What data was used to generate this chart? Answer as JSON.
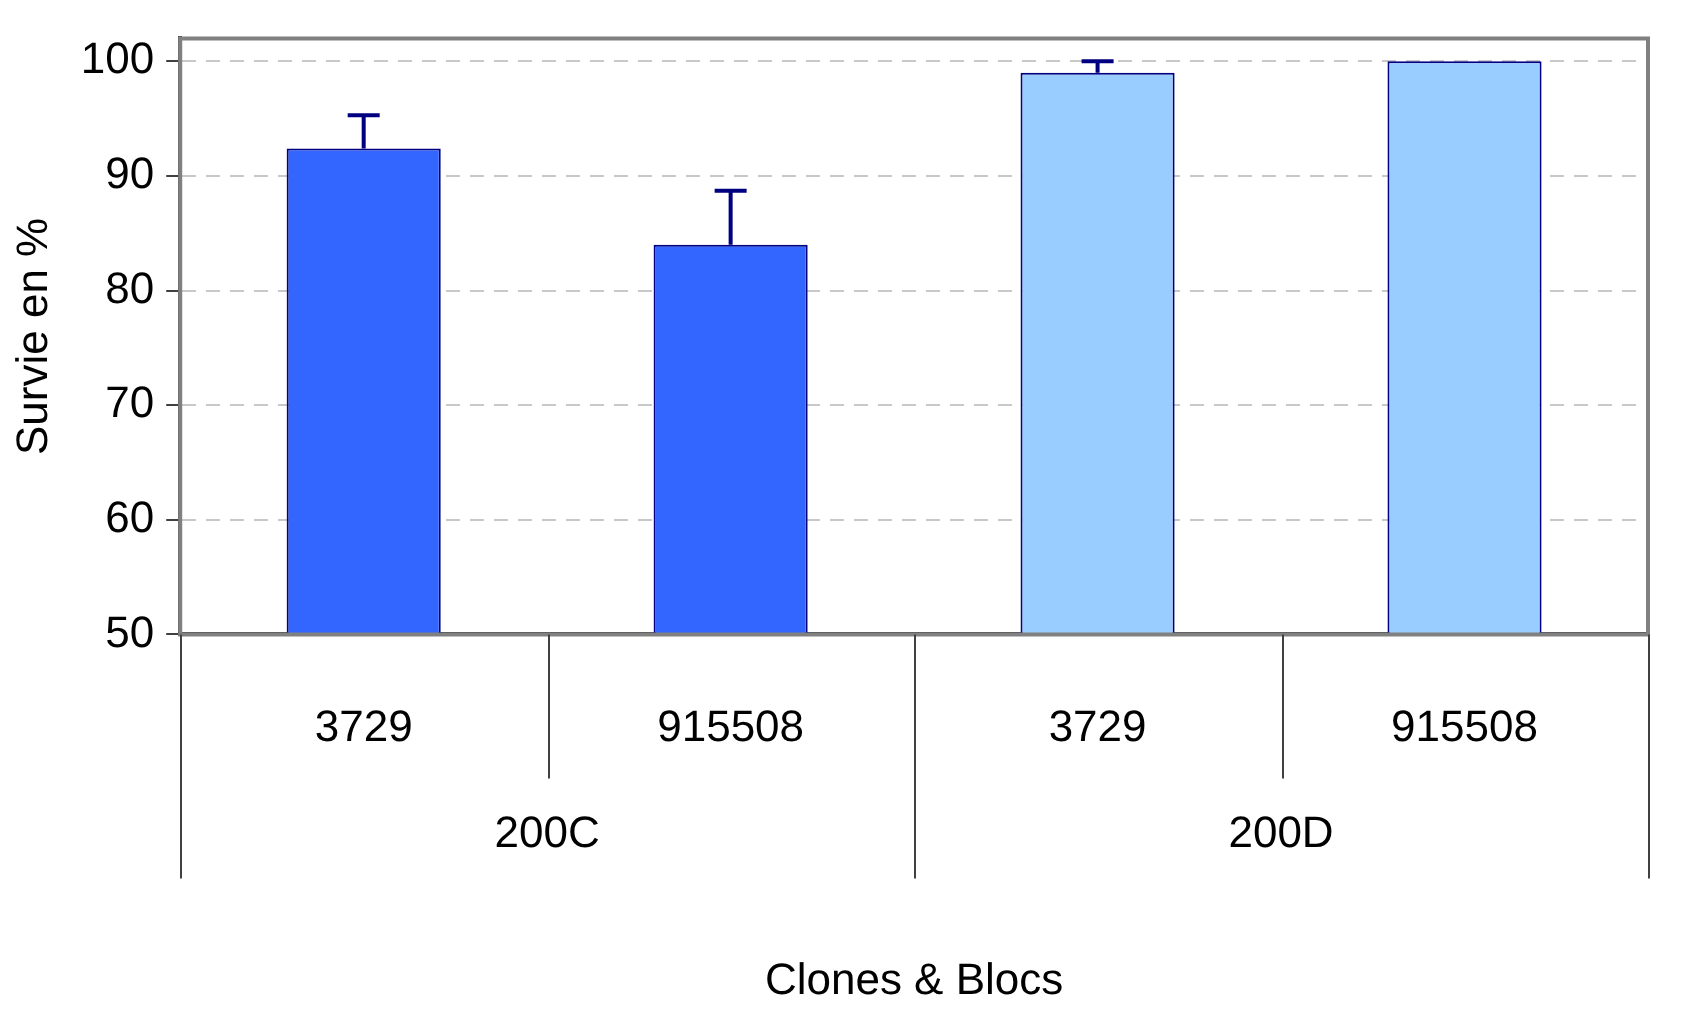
{
  "chart_data": {
    "type": "bar",
    "xlabel": "Clones & Blocs",
    "ylabel": "Survie en %",
    "categories": [
      "3729",
      "915508",
      "3729",
      "915508"
    ],
    "values": [
      92.4,
      84.0,
      99.0,
      100
    ],
    "colors": [
      "#3366ff",
      "#3366ff",
      "#99ccff",
      "#99ccff"
    ],
    "errors": [
      [
        92.4,
        95.3
      ],
      [
        84.0,
        88.7
      ],
      [
        99.0,
        100
      ],
      null
    ],
    "annotations": [
      "200C",
      "200D"
    ],
    "ylim": [
      50,
      102
    ],
    "yticks": [
      50,
      60,
      70,
      80,
      90,
      100
    ],
    "grid": "y",
    "legend": false
  }
}
